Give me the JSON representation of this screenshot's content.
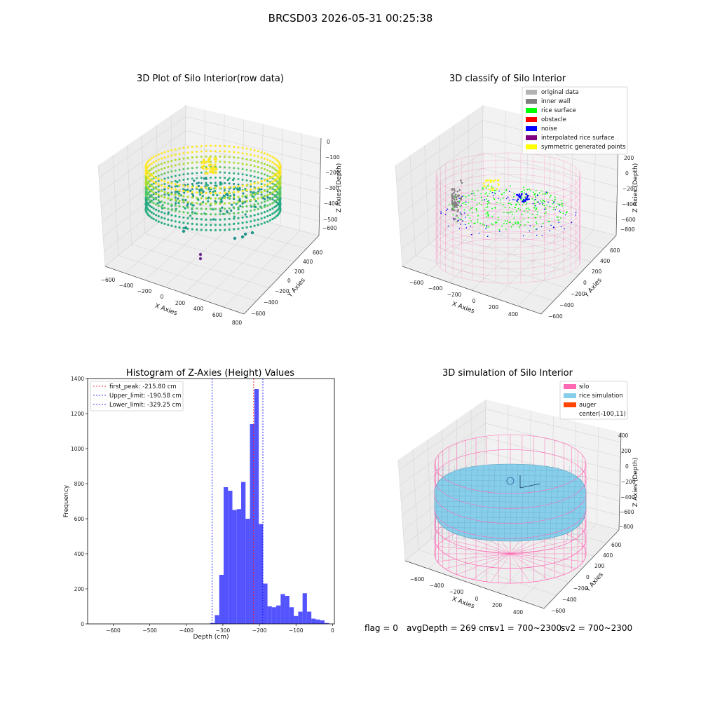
{
  "suptitle": "BRCSD03 2026-05-31 00:25:38",
  "status": {
    "flag": "flag = 0",
    "avg": "avgDepth = 269 cm",
    "sv1": "sv1 = 700~2300",
    "sv2": "sv2 = 700~2300"
  },
  "colors": {
    "pink": "#ff69b4",
    "sky": "#87ceeb",
    "orange": "#ff4500",
    "green": "#00ff00",
    "blue": "#0000ff",
    "gray": "#808080",
    "lightgray": "#b3b3b3",
    "purple": "#800080",
    "yellow": "#ffff00",
    "hist": "#4b4bff",
    "red": "#ff0000"
  },
  "chart_data": [
    {
      "type": "scatter",
      "panel": "raw",
      "title": "3D Plot of Silo Interior(row data)",
      "xlabel": "X Axies",
      "ylabel": "Y Axies",
      "zlabel": "Z Axies (Depth)",
      "xticks": [
        "−600",
        "−400",
        "−200",
        "0",
        "200",
        "400",
        "600",
        "800"
      ],
      "yticks": [
        "−600",
        "−400",
        "−200",
        "0",
        "200",
        "400",
        "600"
      ],
      "zticks": [
        "0",
        "−100",
        "−200",
        "−300",
        "−400",
        "−500",
        "−600"
      ],
      "colormap": "viridis"
    },
    {
      "type": "scatter",
      "panel": "classify",
      "title": "3D classify of Silo Interior",
      "xlabel": "X Axies",
      "ylabel": "Y Axies",
      "zlabel": "Z Axies (Depth)",
      "xticks": [
        "−600",
        "−400",
        "−200",
        "0",
        "200",
        "400"
      ],
      "yticks": [
        "−600",
        "−400",
        "−200",
        "0",
        "200",
        "400",
        "600"
      ],
      "zticks": [
        "200",
        "0",
        "−200",
        "−400",
        "−600",
        "−800"
      ],
      "legend": [
        {
          "label": "original data",
          "color": "#b3b3b3"
        },
        {
          "label": "inner wall",
          "color": "#808080"
        },
        {
          "label": "rice surface",
          "color": "#00ff00"
        },
        {
          "label": "obstacle",
          "color": "#ff0000"
        },
        {
          "label": "noise",
          "color": "#0000ff"
        },
        {
          "label": "interpolated rice surface",
          "color": "#800080"
        },
        {
          "label": "symmetric generated points",
          "color": "#ffff00"
        }
      ],
      "legend_loc": "upper right"
    },
    {
      "type": "bar",
      "panel": "histogram",
      "title": "Histogram of Z-Axies (Height) Values",
      "xlabel": "Depth (cm)",
      "ylabel": "Frequency",
      "xlim": [
        -670,
        5
      ],
      "ylim": [
        0,
        1400
      ],
      "xticks": [
        -600,
        -500,
        -400,
        -300,
        -200,
        -100,
        0
      ],
      "xtick_labels": [
        "−600",
        "−500",
        "−400",
        "−300",
        "−200",
        "−100",
        "0"
      ],
      "yticks": [
        0,
        200,
        400,
        600,
        800,
        1000,
        1200,
        1400
      ],
      "bin_edges": [
        -335,
        -322,
        -310,
        -298,
        -286,
        -274,
        -262,
        -250,
        -238,
        -226,
        -214,
        -202,
        -190,
        -178,
        -166,
        -154,
        -142,
        -130,
        -118,
        -106,
        -94,
        -82,
        -70,
        -58,
        -46,
        -34,
        -22,
        -10
      ],
      "counts": [
        5,
        50,
        280,
        780,
        760,
        650,
        655,
        810,
        600,
        1140,
        1340,
        570,
        230,
        100,
        95,
        105,
        170,
        160,
        95,
        45,
        70,
        175,
        70,
        30,
        25,
        20,
        5
      ],
      "lines": [
        {
          "label": "first_peak: -215.80 cm",
          "x": -215.8,
          "color": "#ff0000"
        },
        {
          "label": "Upper_limit: -190.58 cm",
          "x": -190.58,
          "color": "#0000ff"
        },
        {
          "label": "Lower_limit: -329.25 cm",
          "x": -329.25,
          "color": "#0000ff"
        }
      ],
      "legend_loc": "upper left"
    },
    {
      "type": "area",
      "panel": "simulation",
      "title": "3D simulation of Silo Interior",
      "xlabel": "X Axies",
      "ylabel": "Y Axies",
      "zlabel": "Z Axies (Depth)",
      "xticks": [
        "−600",
        "−400",
        "−200",
        "0",
        "200",
        "400"
      ],
      "yticks": [
        "−600",
        "−400",
        "−200",
        "0",
        "200",
        "400",
        "600"
      ],
      "zticks": [
        "400",
        "200",
        "0",
        "−200",
        "−400",
        "−600",
        "−800"
      ],
      "legend": [
        {
          "label": "silo",
          "color": "#ff69b4"
        },
        {
          "label": "rice simulation",
          "color": "#87ceeb"
        },
        {
          "label": "auger",
          "color": "#ff4500"
        },
        {
          "label": "center(-100,11)",
          "color": ""
        }
      ],
      "legend_loc": "upper right"
    }
  ]
}
